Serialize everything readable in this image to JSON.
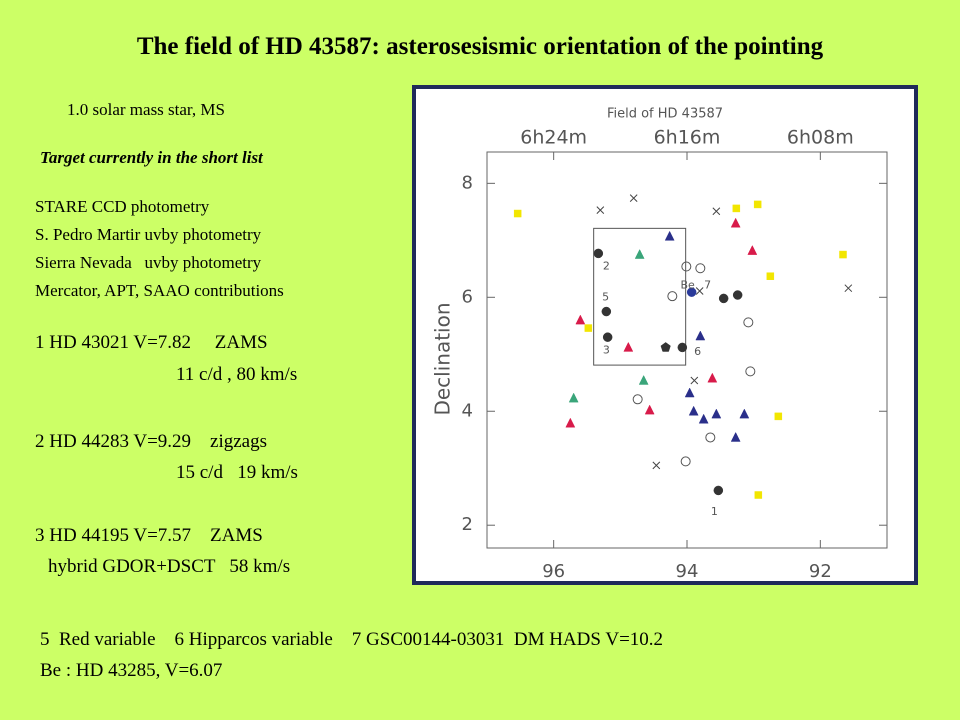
{
  "title": "The field of HD 43587: asterosesismic orientation of the pointing",
  "subtitle": "1.0 solar mass star, MS",
  "status": "Target currently in the short list",
  "photometry": [
    "STARE CCD photometry",
    "S. Pedro Martir uvby photometry",
    "Sierra Nevada   uvby photometry",
    "Mercator, APT, SAAO contributions"
  ],
  "targets": [
    {
      "line1": "1 HD 43021 V=7.82     ZAMS",
      "line2": "11 c/d , 80 km/s"
    },
    {
      "line1": "2 HD 44283 V=9.29    zigzags",
      "line2": "15 c/d   19 km/s"
    },
    {
      "line1": "3 HD 44195 V=7.57    ZAMS",
      "line2": "hybrid GDOR+DSCT   58 km/s"
    }
  ],
  "footer": [
    "5  Red variable    6 Hipparcos variable    7 GSC00144-03031  DM HADS V=10.2",
    "Be : HD 43285, V=6.07"
  ],
  "figure": {
    "type": "scatter",
    "title": "Field of HD 43587",
    "ylabel": "Declination",
    "xlim": [
      97,
      91
    ],
    "ylim": [
      1.6,
      8.55
    ],
    "xticks": [
      96,
      94,
      92
    ],
    "x2ticks": [
      {
        "value": 96,
        "label": "6h24m"
      },
      {
        "value": 94,
        "label": "6h16m"
      },
      {
        "value": 92,
        "label": "6h08m"
      }
    ],
    "yticks": [
      8,
      6,
      4,
      2
    ],
    "box": {
      "x": [
        95.4,
        94.02
      ],
      "y": [
        7.21,
        4.81
      ]
    },
    "series": [
      {
        "marker": "circle",
        "filled": true,
        "color": "#333333",
        "x": [
          95.33,
          95.21,
          95.19,
          94.07,
          93.45,
          93.24,
          93.53
        ],
        "y": [
          6.77,
          5.75,
          5.3,
          5.12,
          5.98,
          6.04,
          2.61
        ]
      },
      {
        "marker": "circle",
        "filled": true,
        "color": "#2a3a9a",
        "x": [
          93.93
        ],
        "y": [
          6.09
        ]
      },
      {
        "marker": "pentagon",
        "filled": true,
        "color": "#333333",
        "x": [
          94.32
        ],
        "y": [
          5.12
        ]
      },
      {
        "marker": "circle",
        "filled": false,
        "color": "#555555",
        "x": [
          94.01,
          93.8,
          94.22,
          93.05,
          94.74,
          93.65,
          94.02,
          93.08
        ],
        "y": [
          6.54,
          6.51,
          6.02,
          4.7,
          4.21,
          3.54,
          3.12,
          5.56
        ]
      },
      {
        "marker": "cross",
        "filled": false,
        "color": "#444444",
        "x": [
          95.3,
          94.8,
          93.56,
          91.58,
          93.81,
          93.89,
          94.46
        ],
        "y": [
          7.53,
          7.74,
          7.51,
          6.16,
          6.11,
          4.54,
          3.05
        ]
      },
      {
        "marker": "triangle",
        "filled": true,
        "color": "#d81b4a",
        "x": [
          95.6,
          94.88,
          93.27,
          93.02,
          93.62,
          94.56,
          95.75
        ],
        "y": [
          5.6,
          5.12,
          7.3,
          6.82,
          4.58,
          4.02,
          3.79
        ]
      },
      {
        "marker": "triangle",
        "filled": true,
        "color": "#3aa57a",
        "x": [
          94.71,
          94.65,
          95.7
        ],
        "y": [
          6.75,
          4.54,
          4.23
        ]
      },
      {
        "marker": "triangle",
        "filled": true,
        "color": "#2a2f8a",
        "x": [
          94.26,
          93.8,
          93.96,
          93.9,
          93.75,
          93.56,
          93.14,
          93.27
        ],
        "y": [
          7.07,
          5.32,
          4.32,
          4.0,
          3.86,
          3.95,
          3.95,
          3.54
        ]
      },
      {
        "marker": "square",
        "filled": true,
        "color": "#f2e600",
        "x": [
          96.54,
          93.26,
          92.94,
          92.75,
          91.66,
          95.48,
          92.63,
          92.93
        ],
        "y": [
          7.47,
          7.56,
          7.63,
          6.37,
          6.75,
          5.46,
          3.91,
          2.53
        ]
      }
    ],
    "labels": [
      {
        "text": "2",
        "x": 95.21,
        "y": 6.54
      },
      {
        "text": "5",
        "x": 95.22,
        "y": 6.0
      },
      {
        "text": "3",
        "x": 95.21,
        "y": 5.07
      },
      {
        "text": "6",
        "x": 93.84,
        "y": 5.04
      },
      {
        "text": "Be",
        "x": 93.99,
        "y": 6.21
      },
      {
        "text": "7",
        "x": 93.69,
        "y": 6.21
      },
      {
        "text": "1",
        "x": 93.59,
        "y": 2.23
      }
    ]
  }
}
